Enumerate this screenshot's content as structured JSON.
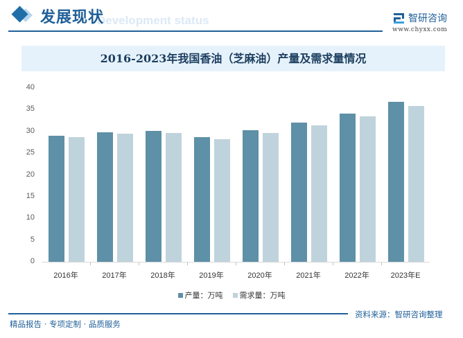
{
  "header": {
    "section_title": "发展现状",
    "section_subtitle": "Development status",
    "logo_name": "智研咨询",
    "logo_url": "www.chyxx.com"
  },
  "chart_data": {
    "type": "bar",
    "title": "2016-2023年我国香油（芝麻油）产量及需求量情况",
    "categories": [
      "2016年",
      "2017年",
      "2018年",
      "2019年",
      "2020年",
      "2021年",
      "2022年",
      "2023年E"
    ],
    "series": [
      {
        "name": "产量：万吨",
        "color": "#5e90a7",
        "values": [
          29.0,
          29.8,
          30.1,
          28.7,
          30.3,
          32.0,
          34.1,
          36.8
        ]
      },
      {
        "name": "需求量：万吨",
        "color": "#bfd3dc",
        "values": [
          28.7,
          29.5,
          29.6,
          28.2,
          29.6,
          31.4,
          33.5,
          35.9
        ]
      }
    ],
    "xlabel": "",
    "ylabel": "",
    "ylim": [
      0,
      40
    ],
    "yticks": [
      "40",
      "35",
      "30",
      "25",
      "20",
      "15",
      "10",
      "5",
      "0"
    ],
    "grid": false,
    "legend_position": "bottom"
  },
  "footer": {
    "slogan": "精品报告 · 专项定制 · 品质服务",
    "source": "资料来源：智研咨询整理"
  }
}
